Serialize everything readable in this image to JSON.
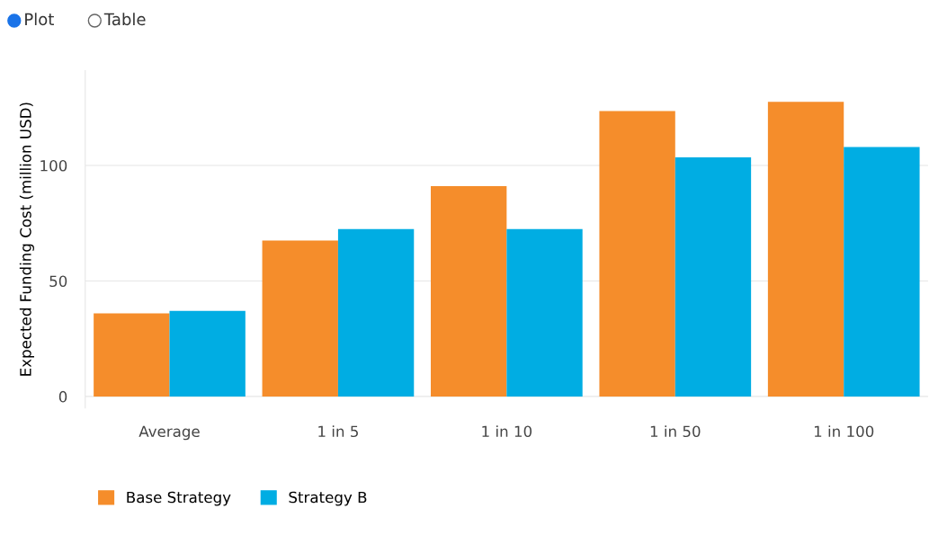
{
  "chart_data": {
    "type": "bar",
    "ylabel": "Expected Funding Cost (million USD)",
    "categories": [
      "Average",
      "1 in 5",
      "1 in 10",
      "1 in 50",
      "1 in 100"
    ],
    "series": [
      {
        "name": "Base Strategy",
        "color": "#f58d2b",
        "values": [
          36,
          67.5,
          91,
          123.5,
          127.5
        ]
      },
      {
        "name": "Strategy B",
        "color": "#00ade3",
        "values": [
          37,
          72.5,
          72.5,
          103.5,
          108
        ]
      }
    ],
    "ylim": [
      -5,
      141
    ],
    "yticks": [
      0,
      50,
      100
    ],
    "grid": "y",
    "legend": "bottom left",
    "annotations": [
      "Plot",
      "Table"
    ]
  }
}
